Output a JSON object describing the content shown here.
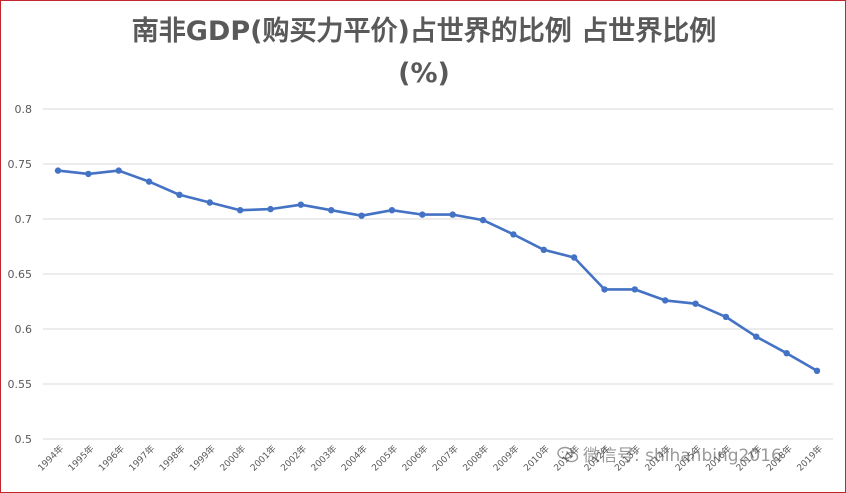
{
  "chart_data": {
    "type": "line",
    "title_line1": "南非GDP(购买力平价)占世界的比例 占世界比例",
    "title_line2": "(%)",
    "categories": [
      "1994年",
      "1995年",
      "1996年",
      "1997年",
      "1998年",
      "1999年",
      "2000年",
      "2001年",
      "2002年",
      "2003年",
      "2004年",
      "2005年",
      "2006年",
      "2007年",
      "2008年",
      "2009年",
      "2010年",
      "2011年",
      "2012年",
      "2013年",
      "2014年",
      "2015年",
      "2016年",
      "2017年",
      "2018年",
      "2019年"
    ],
    "series": [
      {
        "name": "占世界比例",
        "values": [
          0.744,
          0.741,
          0.744,
          0.734,
          0.722,
          0.715,
          0.708,
          0.709,
          0.713,
          0.708,
          0.703,
          0.708,
          0.704,
          0.704,
          0.699,
          0.686,
          0.672,
          0.665,
          0.636,
          0.636,
          0.626,
          0.623,
          0.611,
          0.593,
          0.578,
          0.562
        ]
      }
    ],
    "yticks": [
      "0.5",
      "0.55",
      "0.6",
      "0.65",
      "0.7",
      "0.75",
      "0.8"
    ],
    "ylim": [
      0.5,
      0.8
    ],
    "grid": true,
    "line_color": "#4472c4",
    "grid_color": "#d9d9d9"
  },
  "watermark": {
    "text": "微信号: shihanbing2016",
    "icon": "wechat-icon"
  }
}
